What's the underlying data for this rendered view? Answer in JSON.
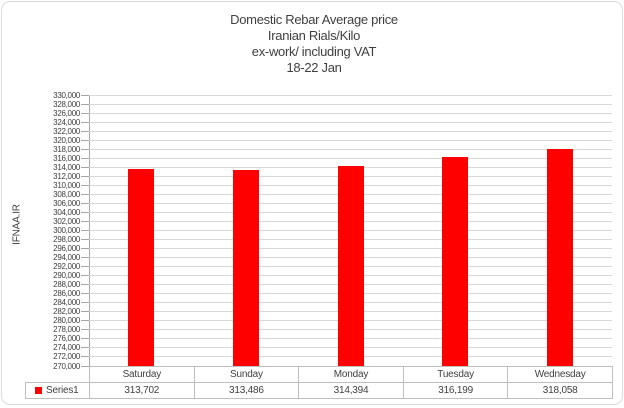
{
  "frame": {
    "background": "#ffffff",
    "border_color": "#dcdcdc"
  },
  "chart_data": {
    "type": "bar",
    "title_lines": [
      "Domestic Rebar Average price",
      "Iranian  Rials/Kilo",
      "ex-work/ including VAT",
      "18-22 Jan"
    ],
    "xlabel": "",
    "ylabel": "IFNAA.IR",
    "categories": [
      "Saturday",
      "Sunday",
      "Monday",
      "Tuesday",
      "Wednesday"
    ],
    "series": [
      {
        "name": "Series1",
        "values": [
          313702,
          313486,
          314394,
          316199,
          318058
        ],
        "value_labels": [
          "313,702",
          "313,486",
          "314,394",
          "316,199",
          "318,058"
        ],
        "color": "#ff0000"
      }
    ],
    "ylim": [
      270000,
      330000
    ],
    "ytick_step": 2000,
    "ytick_labels": [
      "330,000",
      "328,000",
      "326,000",
      "324,000",
      "322,000",
      "320,000",
      "318,000",
      "316,000",
      "314,000",
      "312,000",
      "310,000",
      "308,000",
      "306,000",
      "304,000",
      "302,000",
      "300,000",
      "298,000",
      "296,000",
      "294,000",
      "292,000",
      "290,000",
      "288,000",
      "286,000",
      "284,000",
      "282,000",
      "280,000",
      "278,000",
      "276,000",
      "274,000",
      "272,000",
      "270,000"
    ],
    "grid": true,
    "legend_position": "bottom-table",
    "colors": {
      "bar": "#ff0000",
      "gridline": "#d9d9d9",
      "axis": "#a6a6a6",
      "table_border": "#bfbfbf",
      "text": "#3f3f3f"
    }
  }
}
